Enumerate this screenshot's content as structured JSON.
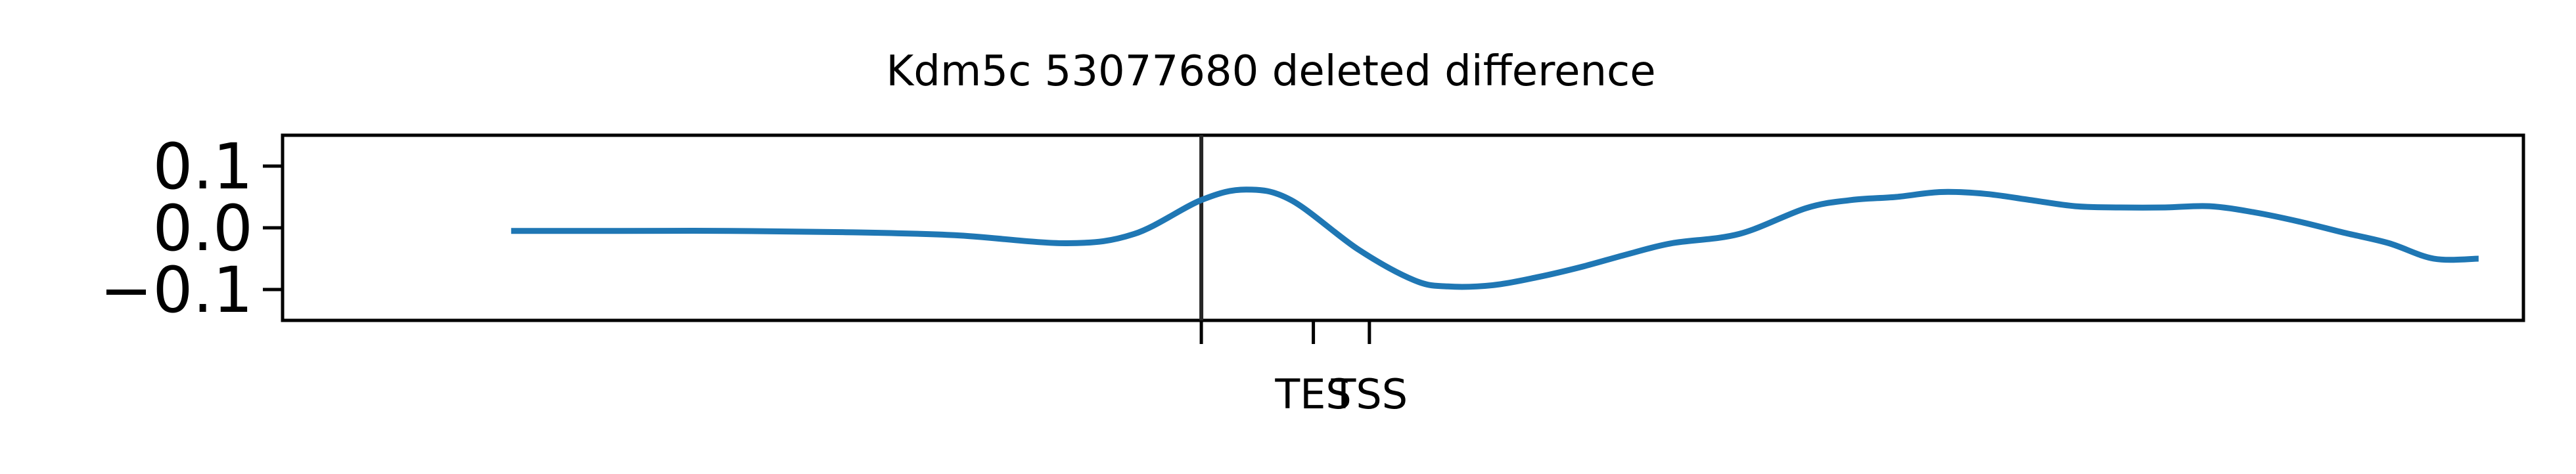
{
  "chart_data": {
    "type": "line",
    "title": "Kdm5c 53077680 deleted difference",
    "xlabel": "",
    "ylabel": "",
    "xlim": [
      0,
      1000
    ],
    "ylim": [
      -0.15,
      0.15
    ],
    "grid": false,
    "yticks": [
      {
        "value": 0.1,
        "label": "0.1"
      },
      {
        "value": 0.0,
        "label": "0.0"
      },
      {
        "value": -0.1,
        "label": "−0.1"
      }
    ],
    "xticks": [
      {
        "value": 410,
        "label": ""
      },
      {
        "value": 460,
        "label": "TES"
      },
      {
        "value": 485,
        "label": "TSS"
      }
    ],
    "vline": {
      "x": 410,
      "color": "#262626"
    },
    "series": [
      {
        "name": "",
        "color": "#1f77b4",
        "x": [
          102,
          150,
          200,
          250,
          300,
          350,
          380,
          410,
          430,
          450,
          480,
          505,
          520,
          540,
          560,
          580,
          600,
          620,
          650,
          680,
          700,
          720,
          740,
          760,
          780,
          800,
          820,
          840,
          860,
          880,
          900,
          920,
          940,
          960,
          980
        ],
        "y": [
          -0.005,
          -0.005,
          -0.005,
          -0.007,
          -0.012,
          -0.025,
          -0.01,
          0.045,
          0.062,
          0.045,
          -0.035,
          -0.085,
          -0.095,
          -0.093,
          -0.08,
          -0.063,
          -0.043,
          -0.025,
          -0.01,
          0.032,
          0.045,
          0.05,
          0.058,
          0.055,
          0.045,
          0.035,
          0.033,
          0.033,
          0.035,
          0.025,
          0.01,
          -0.008,
          -0.025,
          -0.05,
          -0.05
        ]
      }
    ]
  }
}
